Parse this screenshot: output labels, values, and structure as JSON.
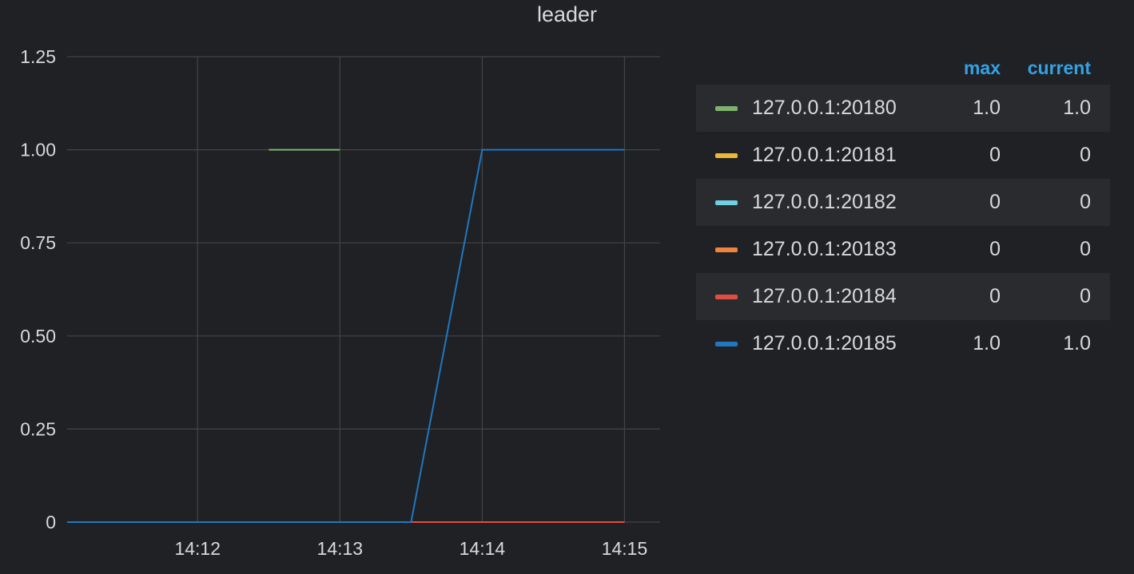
{
  "panel": {
    "title": "leader"
  },
  "legend": {
    "headers": {
      "max": "max",
      "current": "current"
    },
    "rows": [
      {
        "name": "127.0.0.1:20180",
        "max": "1.0",
        "current": "1.0",
        "color": "#7eb26d"
      },
      {
        "name": "127.0.0.1:20181",
        "max": "0",
        "current": "0",
        "color": "#eab839"
      },
      {
        "name": "127.0.0.1:20182",
        "max": "0",
        "current": "0",
        "color": "#6ed0e0"
      },
      {
        "name": "127.0.0.1:20183",
        "max": "0",
        "current": "0",
        "color": "#ef843c"
      },
      {
        "name": "127.0.0.1:20184",
        "max": "0",
        "current": "0",
        "color": "#e24d42"
      },
      {
        "name": "127.0.0.1:20185",
        "max": "1.0",
        "current": "1.0",
        "color": "#1f78c1"
      }
    ]
  },
  "chart_data": {
    "type": "line",
    "title": "leader",
    "xlabel": "",
    "ylabel": "",
    "xlim": [
      "14:11:05",
      "14:15:15"
    ],
    "ylim": [
      0,
      1.25
    ],
    "x_ticks": [
      "14:12",
      "14:13",
      "14:14",
      "14:15"
    ],
    "y_ticks": [
      "0",
      "0.25",
      "0.50",
      "0.75",
      "1.00",
      "1.25"
    ],
    "grid": true,
    "legend_position": "right",
    "series": [
      {
        "name": "127.0.0.1:20180",
        "color": "#7eb26d",
        "points": [
          [
            "14:11:05",
            0
          ],
          [
            "14:12:30",
            null
          ],
          [
            "14:12:30",
            1
          ],
          [
            "14:13:00",
            1
          ]
        ]
      },
      {
        "name": "127.0.0.1:20181",
        "color": "#eab839",
        "points": []
      },
      {
        "name": "127.0.0.1:20182",
        "color": "#6ed0e0",
        "points": []
      },
      {
        "name": "127.0.0.1:20183",
        "color": "#ef843c",
        "points": []
      },
      {
        "name": "127.0.0.1:20184",
        "color": "#e24d42",
        "points": [
          [
            "14:13:30",
            0
          ],
          [
            "14:15:00",
            0
          ]
        ]
      },
      {
        "name": "127.0.0.1:20185",
        "color": "#1f78c1",
        "points": [
          [
            "14:11:05",
            0
          ],
          [
            "14:13:30",
            0
          ],
          [
            "14:14:00",
            1
          ],
          [
            "14:15:00",
            1
          ]
        ]
      }
    ]
  }
}
